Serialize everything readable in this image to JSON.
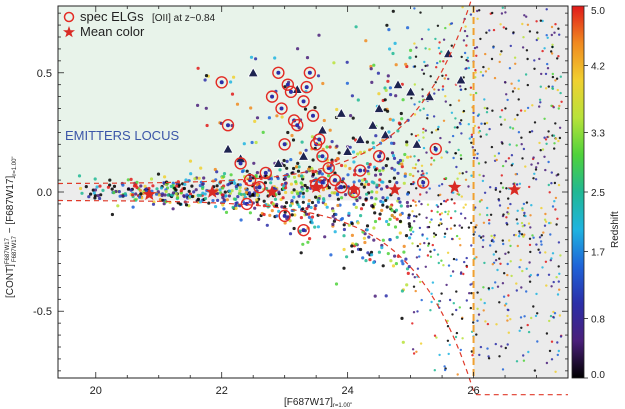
{
  "chart_data": {
    "type": "scatter",
    "xlabel": "[F687W17]",
    "xlabel_sub": "r=1.00\"",
    "ylabel": "[CONT]",
    "ylabel_sub": "F687W17",
    "ylabel_sup": "F687W17",
    "ylabel_mid": " − [F687W17]",
    "ylabel_end": "r=1.00\"",
    "xlim": [
      19.4,
      27.5
    ],
    "ylim": [
      -0.78,
      0.78
    ],
    "xticks": [
      20,
      22,
      24,
      26
    ],
    "yticks": [
      -0.5,
      0.0,
      0.5
    ],
    "xtick_labels": [
      "20",
      "22",
      "24",
      "26"
    ],
    "ytick_labels": [
      "-0.5",
      "0.0",
      "0.5"
    ],
    "colorbar": {
      "label": "Redshift",
      "range": [
        0.0,
        5.0
      ],
      "ticks": [
        "0.0",
        "0.8",
        "1.7",
        "2.5",
        "3.3",
        "4.2",
        "5.0"
      ],
      "tick_values": [
        0.0,
        0.8,
        1.7,
        2.5,
        3.3,
        4.2,
        5.0
      ]
    },
    "legend": {
      "position": "top-left",
      "items": [
        {
          "marker": "open-circle",
          "color": "#e32b24",
          "label": "spec ELGs",
          "note": "[OII] at z~0.84"
        },
        {
          "marker": "star",
          "color": "#d92a24",
          "label": "Mean color"
        }
      ]
    },
    "annotations": [
      {
        "text": "EMITTERS LOCUS",
        "color": "#3b56a8"
      }
    ],
    "magnitude_limit": 26.0,
    "locus_threshold": 0.035,
    "mean_color": {
      "x": [
        20.85,
        21.85,
        22.8,
        23.5,
        24.1,
        24.75,
        25.7,
        26.65
      ],
      "y": [
        -0.01,
        0.0,
        0.0,
        0.02,
        0.01,
        0.01,
        0.02,
        0.01
      ]
    },
    "spec_elgs": {
      "x": [
        22.0,
        22.1,
        22.3,
        22.45,
        22.6,
        22.7,
        22.8,
        22.9,
        22.95,
        23.0,
        23.05,
        23.1,
        23.15,
        23.2,
        23.3,
        23.35,
        23.4,
        23.45,
        23.5,
        23.55,
        23.6,
        23.7,
        23.8,
        23.9,
        24.1,
        24.5,
        25.2,
        25.4,
        24.2,
        23.3,
        22.4,
        23.5,
        23.6,
        23.0
      ],
      "y": [
        0.46,
        0.28,
        0.12,
        0.05,
        0.02,
        0.08,
        0.4,
        0.5,
        0.35,
        0.2,
        0.45,
        0.42,
        0.3,
        0.28,
        0.38,
        0.44,
        0.5,
        0.32,
        0.2,
        0.22,
        0.15,
        0.1,
        0.05,
        0.02,
        0.0,
        0.15,
        0.04,
        0.18,
        0.09,
        -0.16,
        -0.05,
        0.03,
        0.04,
        -0.1
      ]
    },
    "triangles": {
      "x": [
        22.5,
        23.2,
        22.1,
        22.3,
        24.5,
        24.8,
        25.0,
        25.3,
        25.6,
        25.8,
        24.2,
        24.0,
        23.9,
        24.4,
        22.9,
        23.6,
        24.6,
        25.1,
        23.3
      ],
      "y": [
        0.5,
        0.43,
        0.18,
        0.14,
        0.35,
        0.45,
        0.42,
        0.4,
        0.58,
        0.47,
        0.22,
        0.17,
        0.33,
        0.28,
        0.12,
        0.26,
        0.24,
        0.2,
        0.15
      ]
    }
  }
}
